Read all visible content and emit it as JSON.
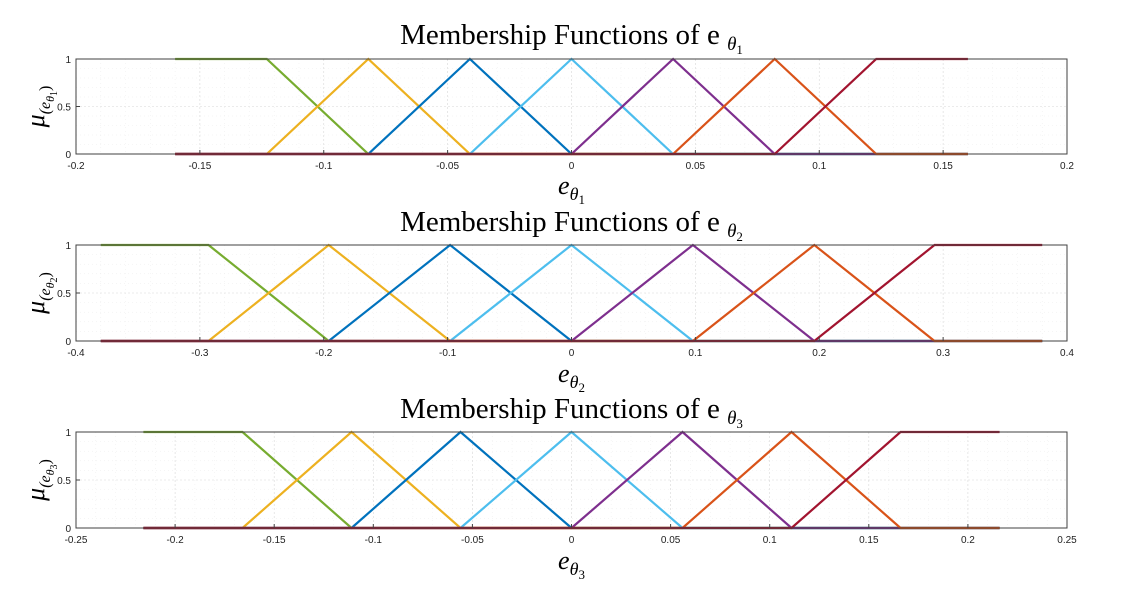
{
  "chart_data": [
    {
      "type": "line",
      "title": "Membership Functions of e",
      "title_sub": "θ",
      "title_subsub": "1",
      "xlabel": "e",
      "xlabel_sub": "θ",
      "xlabel_subsub": "1",
      "ylabel": "μ",
      "ylabel_sub": "(e",
      "ylabel_subsub": "θ",
      "ylabel_idx": "1",
      "ylabel_close": ")",
      "xlim": [
        -0.2,
        0.2
      ],
      "ylim": [
        0,
        1
      ],
      "xticks": [
        "-0.2",
        "-0.15",
        "-0.1",
        "-0.05",
        "0",
        "0.05",
        "0.1",
        "0.15",
        "0.2"
      ],
      "xtick_values": [
        -0.2,
        -0.15,
        -0.1,
        -0.05,
        0,
        0.05,
        0.1,
        0.15,
        0.2
      ],
      "yticks": [
        "0",
        "0.5",
        "1"
      ],
      "ytick_values": [
        0,
        0.5,
        1
      ],
      "grid": true,
      "series": [
        {
          "color": "#77AC30",
          "x": [
            -0.16,
            -0.123,
            -0.082,
            0.16
          ],
          "y": [
            1,
            1,
            0,
            0
          ]
        },
        {
          "color": "#EDB120",
          "x": [
            -0.16,
            -0.123,
            -0.082,
            -0.041,
            0.16
          ],
          "y": [
            0,
            0,
            1,
            0,
            0
          ]
        },
        {
          "color": "#0072BD",
          "x": [
            -0.16,
            -0.082,
            -0.041,
            0,
            0.16
          ],
          "y": [
            0,
            0,
            1,
            0,
            0
          ]
        },
        {
          "color": "#4DBEEE",
          "x": [
            -0.16,
            -0.041,
            0,
            0.041,
            0.16
          ],
          "y": [
            0,
            0,
            1,
            0,
            0
          ]
        },
        {
          "color": "#7E2F8E",
          "x": [
            -0.16,
            0,
            0.041,
            0.082,
            0.16
          ],
          "y": [
            0,
            0,
            1,
            0,
            0
          ]
        },
        {
          "color": "#D95319",
          "x": [
            -0.16,
            0.041,
            0.082,
            0.123,
            0.16
          ],
          "y": [
            0,
            0,
            1,
            0,
            0
          ]
        },
        {
          "color": "#A2142F",
          "x": [
            -0.16,
            0.082,
            0.123,
            0.16
          ],
          "y": [
            0,
            0,
            1,
            1
          ]
        }
      ]
    },
    {
      "type": "line",
      "title": "Membership Functions of e",
      "title_sub": "θ",
      "title_subsub": "2",
      "xlabel": "e",
      "xlabel_sub": "θ",
      "xlabel_subsub": "2",
      "ylabel": "μ",
      "ylabel_sub": "(e",
      "ylabel_subsub": "θ",
      "ylabel_idx": "2",
      "ylabel_close": ")",
      "xlim": [
        -0.4,
        0.4
      ],
      "ylim": [
        0,
        1
      ],
      "xticks": [
        "-0.4",
        "-0.3",
        "-0.2",
        "-0.1",
        "0",
        "0.1",
        "0.2",
        "0.3",
        "0.4"
      ],
      "xtick_values": [
        -0.4,
        -0.3,
        -0.2,
        -0.1,
        0,
        0.1,
        0.2,
        0.3,
        0.4
      ],
      "yticks": [
        "0",
        "0.5",
        "1"
      ],
      "ytick_values": [
        0,
        0.5,
        1
      ],
      "grid": true,
      "series": [
        {
          "color": "#77AC30",
          "x": [
            -0.38,
            -0.293,
            -0.196,
            0.38
          ],
          "y": [
            1,
            1,
            0,
            0
          ]
        },
        {
          "color": "#EDB120",
          "x": [
            -0.38,
            -0.293,
            -0.196,
            -0.098,
            0.38
          ],
          "y": [
            0,
            0,
            1,
            0,
            0
          ]
        },
        {
          "color": "#0072BD",
          "x": [
            -0.38,
            -0.196,
            -0.098,
            0,
            0.38
          ],
          "y": [
            0,
            0,
            1,
            0,
            0
          ]
        },
        {
          "color": "#4DBEEE",
          "x": [
            -0.38,
            -0.098,
            0,
            0.098,
            0.38
          ],
          "y": [
            0,
            0,
            1,
            0,
            0
          ]
        },
        {
          "color": "#7E2F8E",
          "x": [
            -0.38,
            0,
            0.098,
            0.196,
            0.38
          ],
          "y": [
            0,
            0,
            1,
            0,
            0
          ]
        },
        {
          "color": "#D95319",
          "x": [
            -0.38,
            0.098,
            0.196,
            0.293,
            0.38
          ],
          "y": [
            0,
            0,
            1,
            0,
            0
          ]
        },
        {
          "color": "#A2142F",
          "x": [
            -0.38,
            0.196,
            0.293,
            0.38
          ],
          "y": [
            0,
            0,
            1,
            1
          ]
        }
      ]
    },
    {
      "type": "line",
      "title": "Membership Functions of e",
      "title_sub": "θ",
      "title_subsub": "3",
      "xlabel": "e",
      "xlabel_sub": "θ",
      "xlabel_subsub": "3",
      "ylabel": "μ",
      "ylabel_sub": "(e",
      "ylabel_subsub": "θ",
      "ylabel_idx": "3",
      "ylabel_close": ")",
      "xlim": [
        -0.25,
        0.25
      ],
      "ylim": [
        0,
        1
      ],
      "xticks": [
        "-0.25",
        "-0.2",
        "-0.15",
        "-0.1",
        "-0.05",
        "0",
        "0.05",
        "0.1",
        "0.15",
        "0.2",
        "0.25"
      ],
      "xtick_values": [
        -0.25,
        -0.2,
        -0.15,
        -0.1,
        -0.05,
        0,
        0.05,
        0.1,
        0.15,
        0.2,
        0.25
      ],
      "yticks": [
        "0",
        "0.5",
        "1"
      ],
      "ytick_values": [
        0,
        0.5,
        1
      ],
      "grid": true,
      "series": [
        {
          "color": "#77AC30",
          "x": [
            -0.216,
            -0.166,
            -0.111,
            0.216
          ],
          "y": [
            1,
            1,
            0,
            0
          ]
        },
        {
          "color": "#EDB120",
          "x": [
            -0.216,
            -0.166,
            -0.111,
            -0.056,
            0.216
          ],
          "y": [
            0,
            0,
            1,
            0,
            0
          ]
        },
        {
          "color": "#0072BD",
          "x": [
            -0.216,
            -0.111,
            -0.056,
            0,
            0.216
          ],
          "y": [
            0,
            0,
            1,
            0,
            0
          ]
        },
        {
          "color": "#4DBEEE",
          "x": [
            -0.216,
            -0.056,
            0,
            0.056,
            0.216
          ],
          "y": [
            0,
            0,
            1,
            0,
            0
          ]
        },
        {
          "color": "#7E2F8E",
          "x": [
            -0.216,
            0,
            0.056,
            0.111,
            0.216
          ],
          "y": [
            0,
            0,
            1,
            0,
            0
          ]
        },
        {
          "color": "#D95319",
          "x": [
            -0.216,
            0.056,
            0.111,
            0.166,
            0.216
          ],
          "y": [
            0,
            0,
            1,
            0,
            0
          ]
        },
        {
          "color": "#A2142F",
          "x": [
            -0.216,
            0.111,
            0.166,
            0.216
          ],
          "y": [
            0,
            0,
            1,
            1
          ]
        }
      ]
    }
  ]
}
